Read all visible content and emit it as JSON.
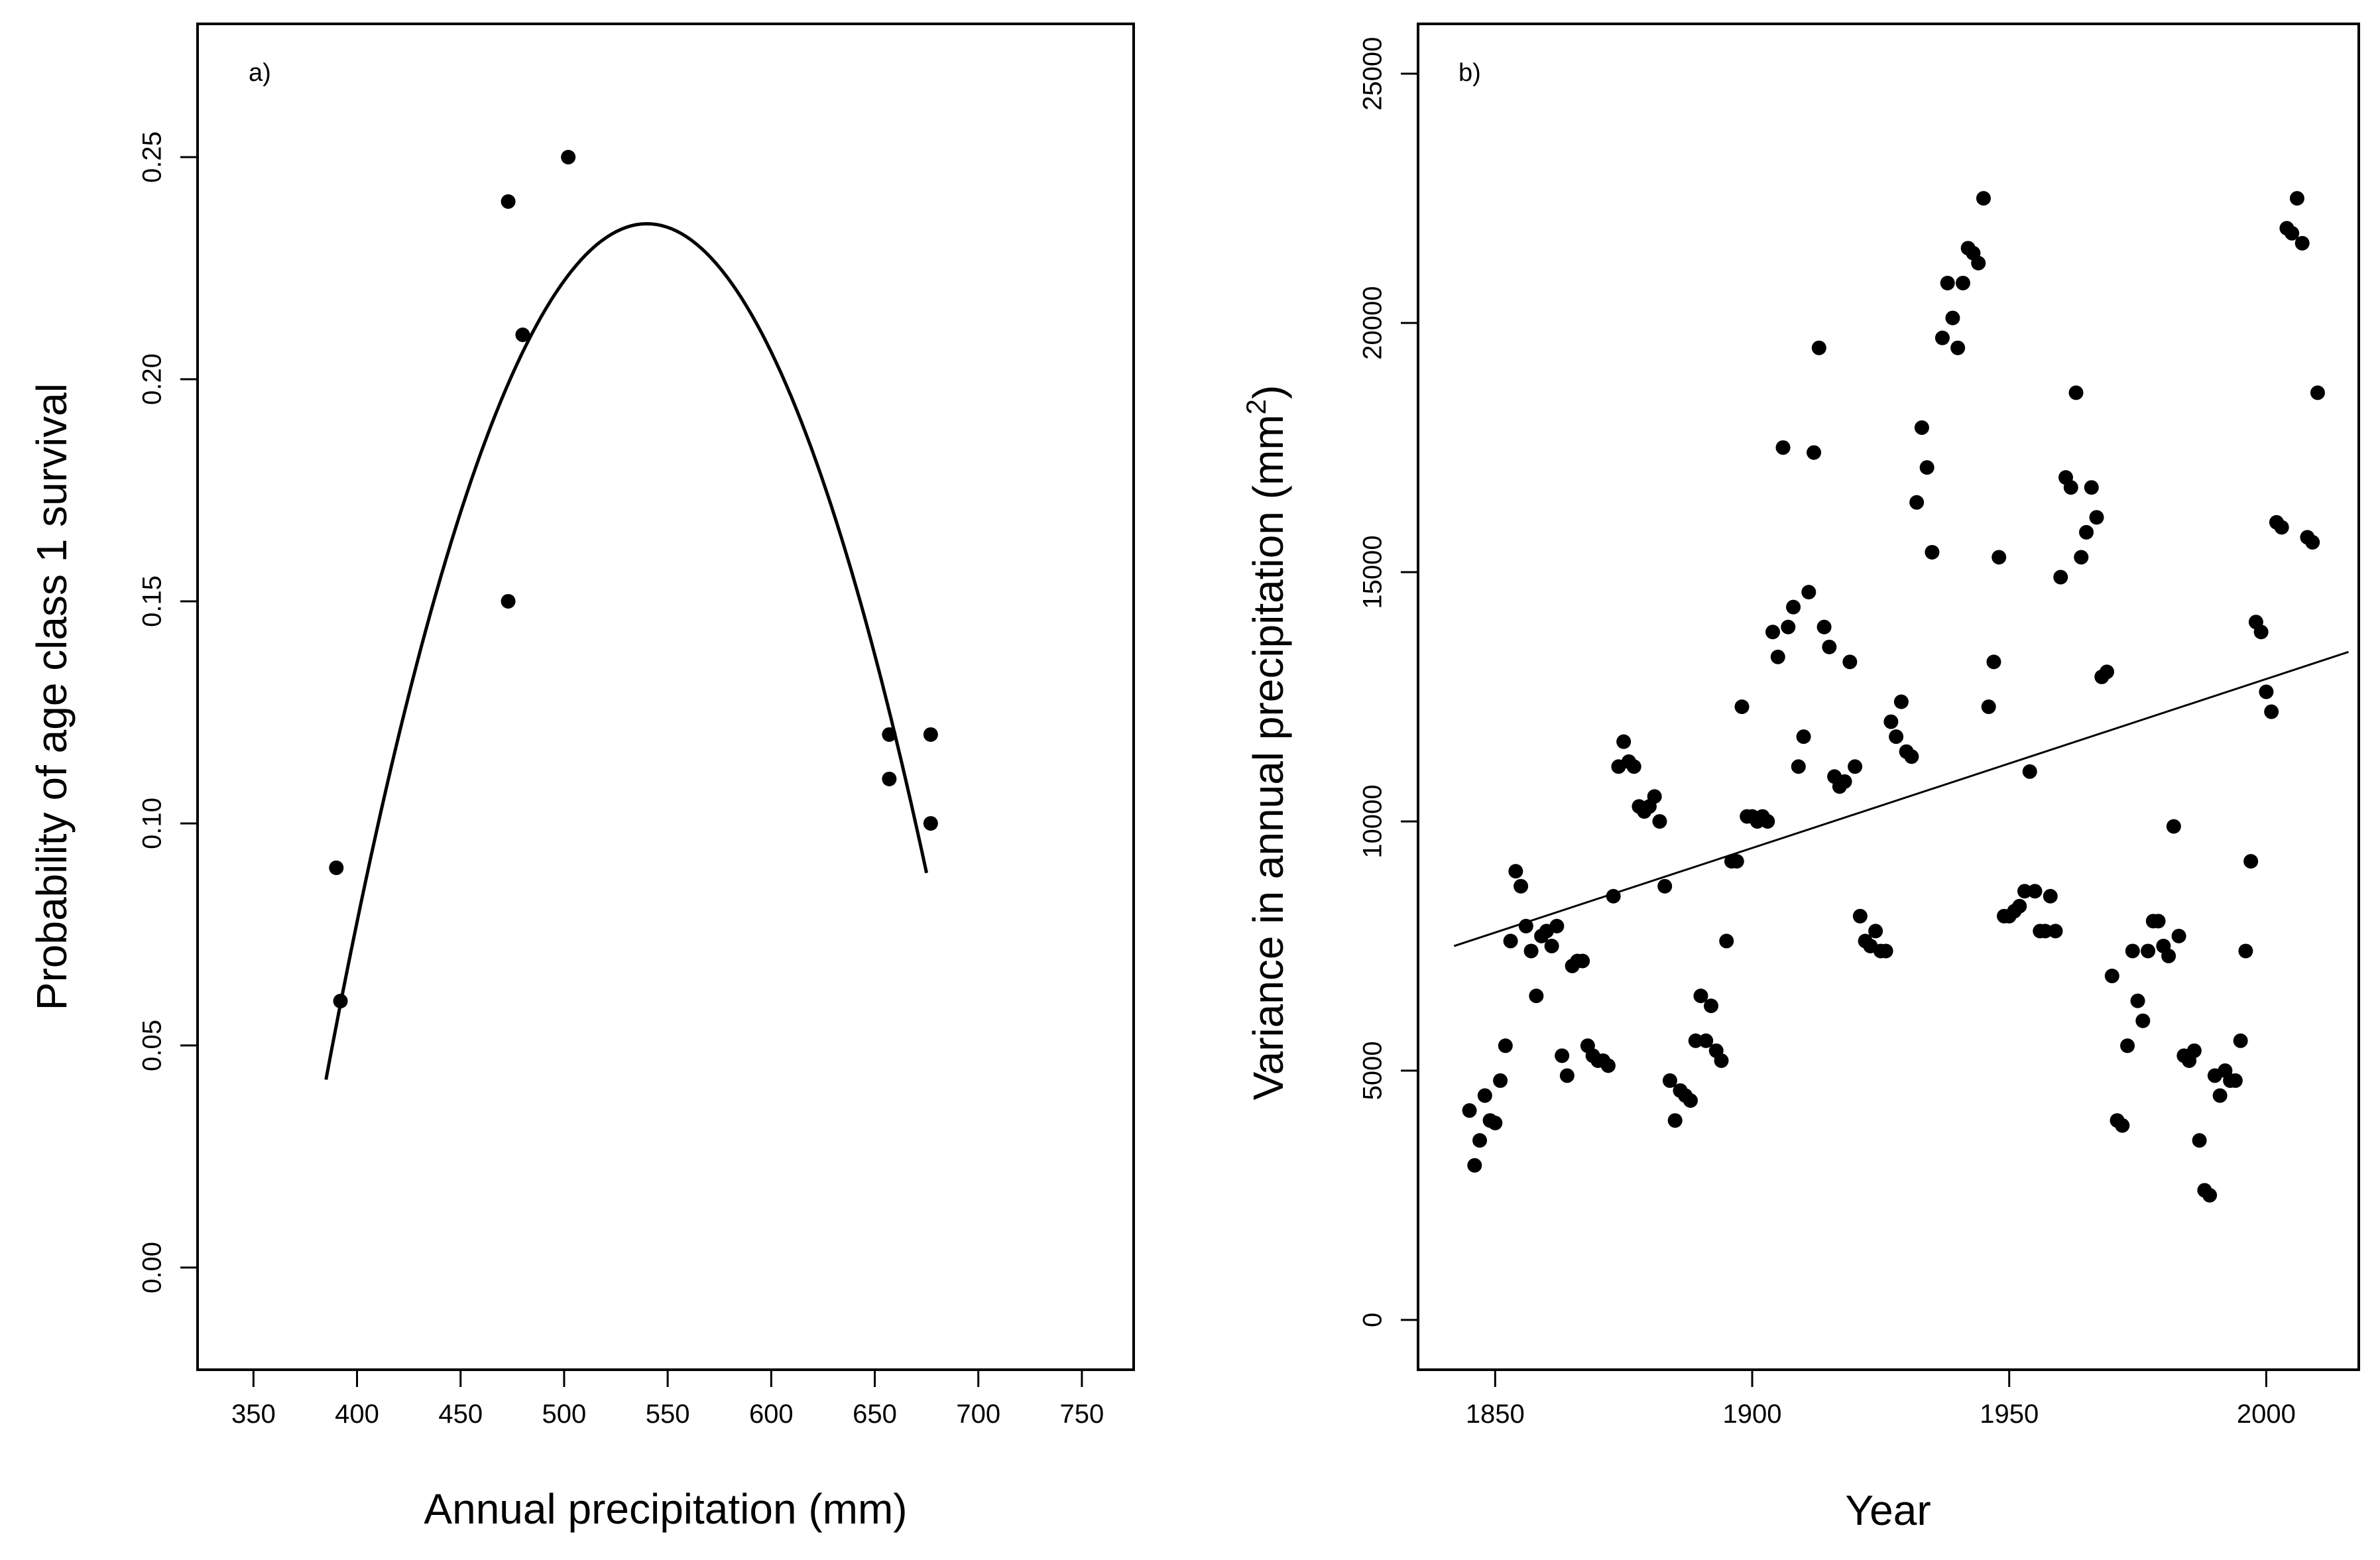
{
  "chart_data": [
    {
      "type": "scatter",
      "panel_label": "a)",
      "title": "",
      "xlabel": "Annual precipitation (mm)",
      "ylabel": "Probability of age class 1 survival",
      "xlim": [
        323,
        775
      ],
      "ylim": [
        -0.023,
        0.28
      ],
      "xticks": [
        350,
        400,
        450,
        500,
        550,
        600,
        650,
        700,
        750
      ],
      "yticks": [
        0.0,
        0.05,
        0.1,
        0.15,
        0.2,
        0.25
      ],
      "ytick_labels": [
        "0.00",
        "0.05",
        "0.10",
        "0.15",
        "0.20",
        "0.25"
      ],
      "grid": false,
      "points": [
        {
          "x": 390,
          "y": 0.09
        },
        {
          "x": 392,
          "y": 0.06
        },
        {
          "x": 473,
          "y": 0.24
        },
        {
          "x": 473,
          "y": 0.15
        },
        {
          "x": 480,
          "y": 0.21
        },
        {
          "x": 502,
          "y": 0.25
        },
        {
          "x": 657,
          "y": 0.12
        },
        {
          "x": 657,
          "y": 0.11
        },
        {
          "x": 677,
          "y": 0.12
        },
        {
          "x": 677,
          "y": 0.1
        }
      ],
      "fit": {
        "type": "quadratic",
        "vertex_x": 540,
        "vertex_y": 0.235,
        "a": -8.02e-06,
        "x_range": [
          385,
          675
        ]
      }
    },
    {
      "type": "scatter",
      "panel_label": "b)",
      "title": "",
      "xlabel": "Year",
      "ylabel": "Variance in annual precipitation (mm",
      "ylabel_superscript": "2",
      "ylabel_suffix": ")",
      "xlim": [
        1835,
        2018
      ],
      "ylim": [
        -1000,
        26000
      ],
      "xticks": [
        1850,
        1900,
        1950,
        2000
      ],
      "yticks": [
        0,
        5000,
        10000,
        15000,
        20000,
        25000
      ],
      "grid": false,
      "points": [
        [
          1845,
          4200
        ],
        [
          1846,
          3100
        ],
        [
          1847,
          3600
        ],
        [
          1848,
          4500
        ],
        [
          1849,
          4000
        ],
        [
          1850,
          3950
        ],
        [
          1851,
          4800
        ],
        [
          1852,
          5500
        ],
        [
          1853,
          7600
        ],
        [
          1854,
          9000
        ],
        [
          1855,
          8700
        ],
        [
          1856,
          7900
        ],
        [
          1857,
          7400
        ],
        [
          1858,
          6500
        ],
        [
          1859,
          7700
        ],
        [
          1860,
          7800
        ],
        [
          1861,
          7500
        ],
        [
          1862,
          7900
        ],
        [
          1863,
          5300
        ],
        [
          1864,
          4900
        ],
        [
          1865,
          7100
        ],
        [
          1866,
          7200
        ],
        [
          1867,
          7200
        ],
        [
          1868,
          5500
        ],
        [
          1869,
          5300
        ],
        [
          1870,
          5200
        ],
        [
          1871,
          5200
        ],
        [
          1872,
          5100
        ],
        [
          1873,
          8500
        ],
        [
          1874,
          11100
        ],
        [
          1875,
          11600
        ],
        [
          1876,
          11200
        ],
        [
          1877,
          11100
        ],
        [
          1878,
          10300
        ],
        [
          1879,
          10200
        ],
        [
          1880,
          10300
        ],
        [
          1881,
          10500
        ],
        [
          1882,
          10000
        ],
        [
          1883,
          8700
        ],
        [
          1884,
          4800
        ],
        [
          1885,
          4000
        ],
        [
          1886,
          4600
        ],
        [
          1887,
          4500
        ],
        [
          1888,
          4400
        ],
        [
          1889,
          5600
        ],
        [
          1890,
          6500
        ],
        [
          1891,
          5600
        ],
        [
          1892,
          6300
        ],
        [
          1893,
          5400
        ],
        [
          1894,
          5200
        ],
        [
          1895,
          7600
        ],
        [
          1896,
          9200
        ],
        [
          1897,
          9200
        ],
        [
          1898,
          12300
        ],
        [
          1899,
          10100
        ],
        [
          1900,
          10100
        ],
        [
          1901,
          10000
        ],
        [
          1902,
          10100
        ],
        [
          1903,
          10000
        ],
        [
          1904,
          13800
        ],
        [
          1905,
          13300
        ],
        [
          1906,
          17500
        ],
        [
          1907,
          13900
        ],
        [
          1908,
          14300
        ],
        [
          1909,
          11100
        ],
        [
          1910,
          11700
        ],
        [
          1911,
          14600
        ],
        [
          1912,
          17400
        ],
        [
          1913,
          19500
        ],
        [
          1914,
          13900
        ],
        [
          1915,
          13500
        ],
        [
          1916,
          10900
        ],
        [
          1917,
          10700
        ],
        [
          1918,
          10800
        ],
        [
          1919,
          13200
        ],
        [
          1920,
          11100
        ],
        [
          1921,
          8100
        ],
        [
          1922,
          7600
        ],
        [
          1923,
          7500
        ],
        [
          1924,
          7800
        ],
        [
          1925,
          7400
        ],
        [
          1926,
          7400
        ],
        [
          1927,
          12000
        ],
        [
          1928,
          11700
        ],
        [
          1929,
          12400
        ],
        [
          1930,
          11400
        ],
        [
          1931,
          11300
        ],
        [
          1932,
          16400
        ],
        [
          1933,
          17900
        ],
        [
          1934,
          17100
        ],
        [
          1935,
          15400
        ],
        [
          1937,
          19700
        ],
        [
          1938,
          20800
        ],
        [
          1939,
          20100
        ],
        [
          1940,
          19500
        ],
        [
          1941,
          20800
        ],
        [
          1942,
          21500
        ],
        [
          1943,
          21400
        ],
        [
          1944,
          21200
        ],
        [
          1945,
          22500
        ],
        [
          1946,
          12300
        ],
        [
          1947,
          13200
        ],
        [
          1948,
          15300
        ],
        [
          1949,
          8100
        ],
        [
          1950,
          8100
        ],
        [
          1951,
          8200
        ],
        [
          1952,
          8300
        ],
        [
          1953,
          8600
        ],
        [
          1954,
          11000
        ],
        [
          1955,
          8600
        ],
        [
          1956,
          7800
        ],
        [
          1957,
          7800
        ],
        [
          1958,
          8500
        ],
        [
          1959,
          7800
        ],
        [
          1960,
          14900
        ],
        [
          1961,
          16900
        ],
        [
          1962,
          16700
        ],
        [
          1963,
          18600
        ],
        [
          1964,
          15300
        ],
        [
          1965,
          15800
        ],
        [
          1966,
          16700
        ],
        [
          1967,
          16100
        ],
        [
          1968,
          12900
        ],
        [
          1969,
          13000
        ],
        [
          1970,
          6900
        ],
        [
          1971,
          4000
        ],
        [
          1972,
          3900
        ],
        [
          1973,
          5500
        ],
        [
          1974,
          7400
        ],
        [
          1975,
          6400
        ],
        [
          1976,
          6000
        ],
        [
          1977,
          7400
        ],
        [
          1978,
          8000
        ],
        [
          1979,
          8000
        ],
        [
          1980,
          7500
        ],
        [
          1981,
          7300
        ],
        [
          1982,
          9900
        ],
        [
          1983,
          7700
        ],
        [
          1984,
          5300
        ],
        [
          1985,
          5200
        ],
        [
          1986,
          5400
        ],
        [
          1987,
          3600
        ],
        [
          1988,
          2600
        ],
        [
          1989,
          2500
        ],
        [
          1990,
          4900
        ],
        [
          1991,
          4500
        ],
        [
          1992,
          5000
        ],
        [
          1993,
          4800
        ],
        [
          1994,
          4800
        ],
        [
          1995,
          5600
        ],
        [
          1996,
          7400
        ],
        [
          1997,
          9200
        ],
        [
          1998,
          14000
        ],
        [
          1999,
          13800
        ],
        [
          2000,
          12600
        ],
        [
          2001,
          12200
        ],
        [
          2002,
          16000
        ],
        [
          2003,
          15900
        ],
        [
          2004,
          21900
        ],
        [
          2005,
          21800
        ],
        [
          2006,
          22500
        ],
        [
          2007,
          21600
        ],
        [
          2008,
          15700
        ],
        [
          2009,
          15600
        ],
        [
          2010,
          18600
        ]
      ],
      "trend_line": {
        "x": [
          1842,
          2016
        ],
        "y": [
          7500,
          13400
        ]
      }
    }
  ]
}
